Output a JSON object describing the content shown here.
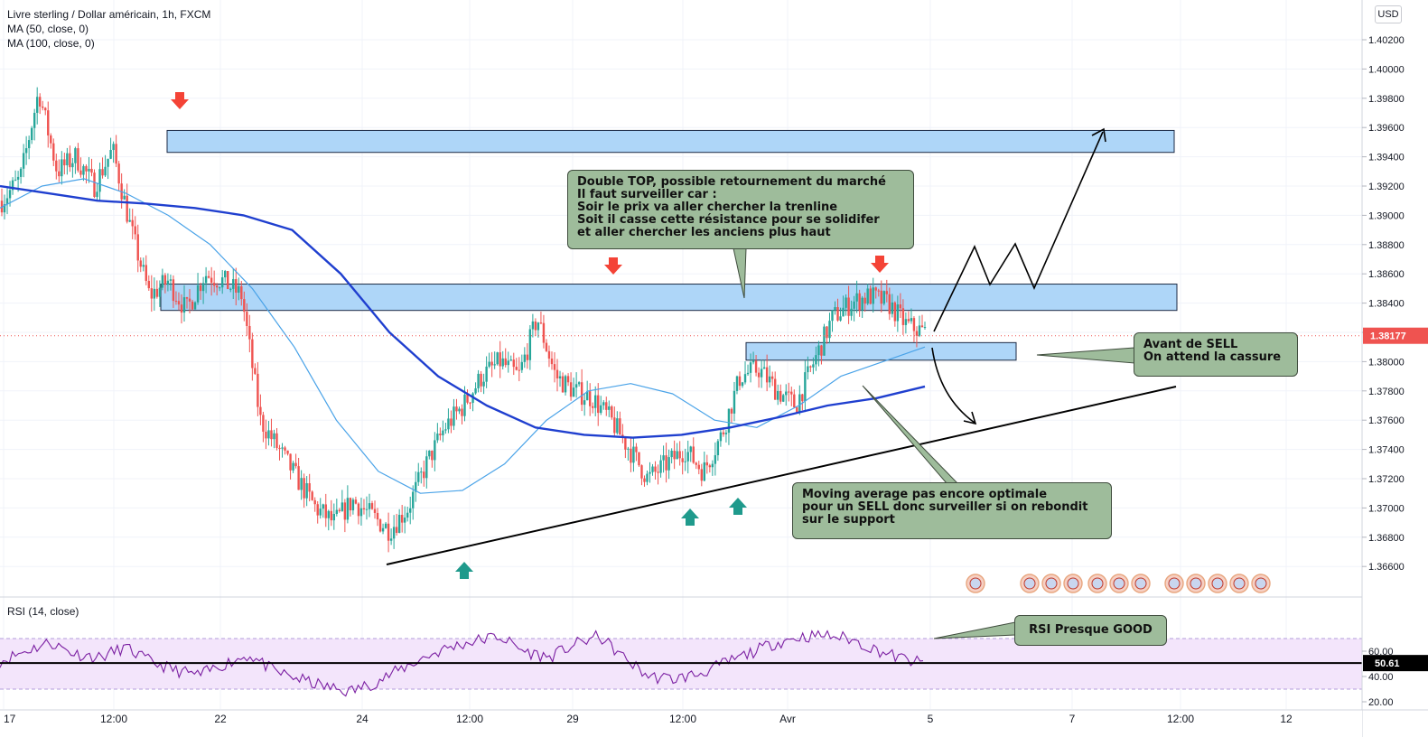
{
  "legend": {
    "symbol": "Livre sterling / Dollar américain, 1h, FXCM",
    "ma50": "MA (50, close, 0)",
    "ma100": "MA (100, close, 0)",
    "rsi": "RSI (14, close)"
  },
  "currency_button": "USD",
  "annotations": {
    "double_top": [
      "Double TOP, possible retournement du marché",
      "Il faut surveiller car :",
      "Soir le prix va aller chercher la trenline",
      "Soit il casse cette résistance pour se solidifer",
      "et aller chercher les anciens plus haut"
    ],
    "sell": [
      "Avant de SELL",
      "On attend la cassure"
    ],
    "moving_average": [
      "Moving average pas encore optimale",
      "pour un SELL donc surveiller si on rebondit",
      "sur le support"
    ],
    "rsi": [
      "RSI Presque GOOD"
    ]
  },
  "colors": {
    "up": "#26a69a",
    "down": "#ef5350",
    "ma50": "#4aa3e8",
    "ma100": "#1f3fcf",
    "zone_fill": "#aed6f8",
    "zone_stroke": "#1c2a44",
    "note_fill": "#9ebc9b",
    "rsi_band": "#f3e5fb",
    "rsi_line": "#7b1fa2",
    "price_label": "#ef5350",
    "arrow_down": "#f44336",
    "arrow_up": "#1f9a8c"
  },
  "chart_data": {
    "type": "candlestick",
    "symbol": "GBPUSD",
    "timeframe": "1h",
    "y_ticks": [
      "1.40200",
      "1.40000",
      "1.39800",
      "1.39600",
      "1.39400",
      "1.39200",
      "1.39000",
      "1.38800",
      "1.38600",
      "1.38400",
      "1.38200",
      "1.38000",
      "1.37800",
      "1.37600",
      "1.37400",
      "1.37200",
      "1.37000",
      "1.36800",
      "1.36600"
    ],
    "ylim": [
      1.3645,
      1.4035
    ],
    "x_ticks": [
      "17",
      "12:00",
      "22",
      "24",
      "12:00",
      "29",
      "12:00",
      "Avr",
      "5",
      "7",
      "12:00",
      "12"
    ],
    "last_price": "1.38177",
    "last_price_value": 1.38177,
    "price_path": [
      1.391,
      1.3925,
      1.3985,
      1.393,
      1.394,
      1.392,
      1.3945,
      1.389,
      1.3845,
      1.3855,
      1.3835,
      1.386,
      1.3855,
      1.3845,
      1.376,
      1.374,
      1.372,
      1.37,
      1.369,
      1.3705,
      1.3695,
      1.3685,
      1.37,
      1.373,
      1.3755,
      1.377,
      1.379,
      1.38,
      1.379,
      1.383,
      1.379,
      1.378,
      1.3775,
      1.376,
      1.374,
      1.372,
      1.373,
      1.374,
      1.3725,
      1.375,
      1.379,
      1.3795,
      1.378,
      1.377,
      1.38,
      1.383,
      1.384,
      1.3845,
      1.384,
      1.3825,
      1.382
    ],
    "series": [
      {
        "name": "MA (50, close, 0)",
        "values": [
          1.3905,
          1.392,
          1.3925,
          1.3915,
          1.39,
          1.388,
          1.385,
          1.381,
          1.376,
          1.3725,
          1.371,
          1.3712,
          1.373,
          1.376,
          1.378,
          1.3785,
          1.3778,
          1.376,
          1.3755,
          1.377,
          1.379,
          1.38,
          1.381
        ]
      },
      {
        "name": "MA (100, close, 0)",
        "values": [
          1.392,
          1.3915,
          1.391,
          1.3908,
          1.3905,
          1.39,
          1.389,
          1.386,
          1.382,
          1.379,
          1.377,
          1.3755,
          1.375,
          1.3748,
          1.375,
          1.3755,
          1.3762,
          1.377,
          1.3775,
          1.3783
        ]
      }
    ],
    "resistance_zones": [
      {
        "low": 1.3943,
        "high": 1.3958
      },
      {
        "low": 1.3835,
        "high": 1.3853
      },
      {
        "low": 1.3801,
        "high": 1.3813
      }
    ],
    "rsi": {
      "ticks": [
        "60.00",
        "40.00",
        "20.00"
      ],
      "value": "50.61",
      "value_num": 50.61,
      "upper": 70,
      "lower": 30,
      "path": [
        52,
        60,
        67,
        58,
        55,
        63,
        52,
        45,
        41,
        50,
        57,
        44,
        38,
        32,
        28,
        35,
        45,
        55,
        63,
        68,
        72,
        60,
        55,
        65,
        72,
        55,
        40,
        38,
        42,
        50,
        58,
        66,
        71,
        73,
        70,
        62,
        55,
        50
      ],
      "ylim": [
        18,
        78
      ]
    }
  }
}
